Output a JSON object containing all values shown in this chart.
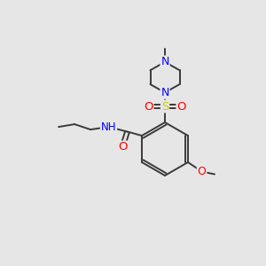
{
  "bg_color": "#e6e6e6",
  "bond_color": "#3a3a3a",
  "N_color": "#0000ff",
  "O_color": "#ff0000",
  "S_color": "#cccc00",
  "figsize": [
    3.0,
    3.0
  ],
  "dpi": 100,
  "xlim": [
    0,
    10
  ],
  "ylim": [
    0,
    10
  ]
}
